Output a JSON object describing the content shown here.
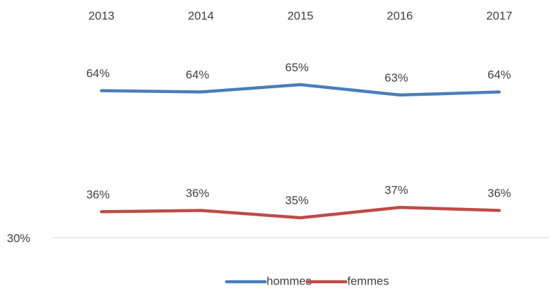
{
  "chart_data": {
    "type": "line",
    "categories": [
      "2013",
      "2014",
      "2015",
      "2016",
      "2017"
    ],
    "series": [
      {
        "name": "hommes",
        "color": "#4a7ebb",
        "values": [
          64.0,
          63.7,
          65.4,
          63.0,
          63.7
        ],
        "value_labels": [
          "64%",
          "64%",
          "65%",
          "63%",
          "64%"
        ]
      },
      {
        "name": "femmes",
        "color": "#be4b48",
        "values": [
          36.0,
          36.3,
          34.6,
          37.0,
          36.3
        ],
        "value_labels": [
          "36%",
          "36%",
          "35%",
          "37%",
          "36%"
        ]
      }
    ],
    "ylim": [
      30,
      70
    ],
    "yticks": [
      {
        "value": 30,
        "label": "30%"
      }
    ],
    "legend": "bottom"
  }
}
